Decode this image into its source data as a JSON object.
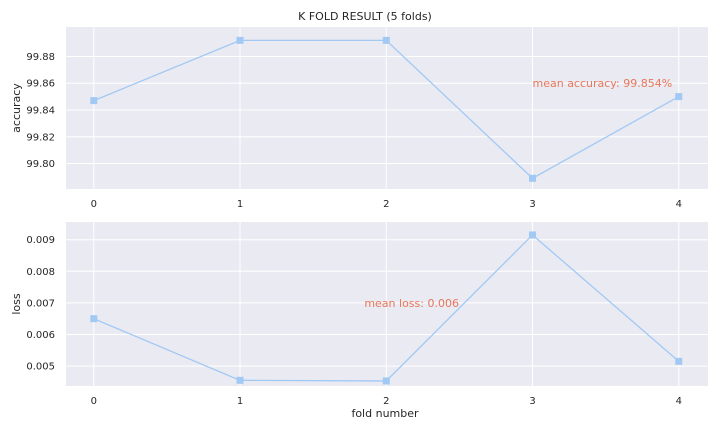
{
  "chart_data": [
    {
      "type": "line",
      "title": "K FOLD RESULT (5 folds)",
      "xlabel": "",
      "ylabel": "accuracy",
      "x": [
        0,
        1,
        2,
        3,
        4
      ],
      "x_ticks": [
        "0",
        "1",
        "2",
        "3",
        "4"
      ],
      "xlim": [
        -0.19,
        4.2
      ],
      "y_ticks": [
        "99.80",
        "99.82",
        "99.84",
        "99.86",
        "99.88"
      ],
      "ylim": [
        99.781,
        99.902
      ],
      "grid": true,
      "series": [
        {
          "values": [
            99.847,
            99.892,
            99.892,
            99.789,
            99.85
          ]
        }
      ],
      "annotations": [
        {
          "text": "mean accuracy: 99.854%",
          "x": 3.0,
          "y": 99.86
        }
      ]
    },
    {
      "type": "line",
      "title": "",
      "xlabel": "fold number",
      "ylabel": "loss",
      "x": [
        0,
        1,
        2,
        3,
        4
      ],
      "x_ticks": [
        "0",
        "1",
        "2",
        "3",
        "4"
      ],
      "xlim": [
        -0.19,
        4.2
      ],
      "y_ticks": [
        "0.005",
        "0.006",
        "0.007",
        "0.008",
        "0.009"
      ],
      "ylim": [
        0.00437,
        0.00956
      ],
      "grid": true,
      "series": [
        {
          "values": [
            0.0065,
            0.00455,
            0.00453,
            0.00915,
            0.00515
          ]
        }
      ],
      "annotations": [
        {
          "text": "mean loss: 0.006",
          "x": 1.85,
          "y": 0.007
        }
      ]
    }
  ],
  "colors": {
    "line": "#a1c9f4",
    "marker": "#a1c9f4",
    "annotation": "#e8765a",
    "axes_bg": "#eaeaf2",
    "grid": "#ffffff",
    "text": "#262626"
  }
}
